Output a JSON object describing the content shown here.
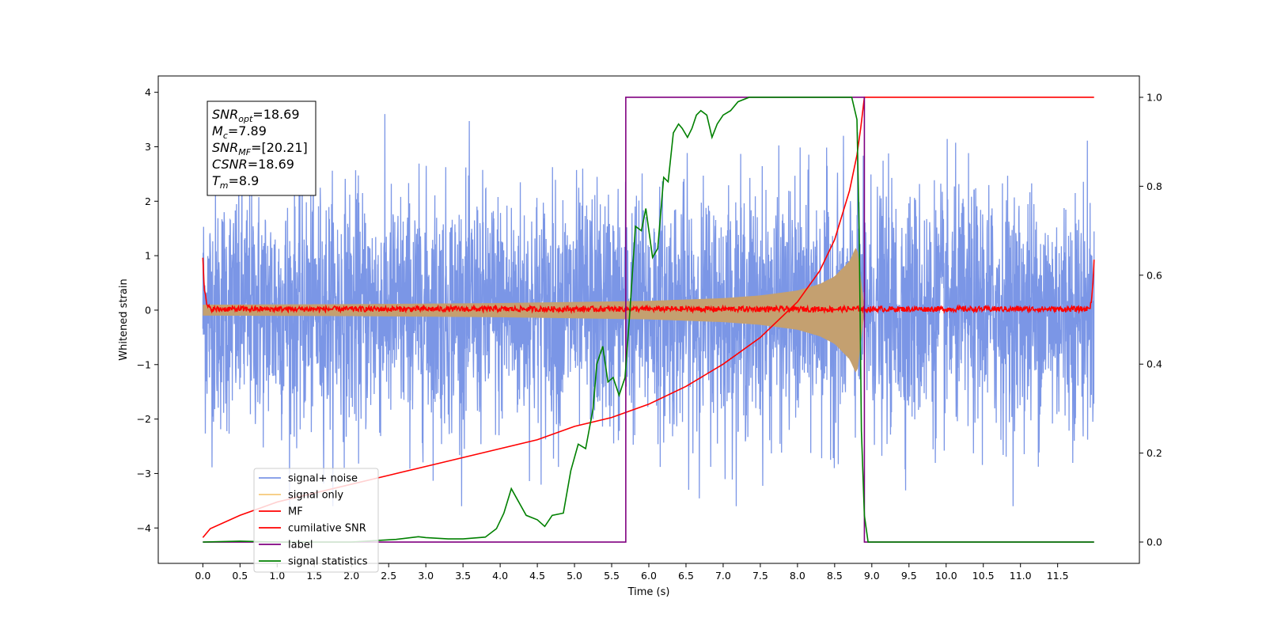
{
  "chart_data": {
    "type": "line",
    "xlabel": "Time (s)",
    "ylabel": "Whitened strain",
    "xlim": [
      -0.6,
      12.6
    ],
    "ylim": [
      -4.65,
      4.3
    ],
    "y2lim": [
      -0.048,
      1.048
    ],
    "xticks": [
      "0.0",
      "0.5",
      "1.0",
      "1.5",
      "2.0",
      "2.5",
      "3.0",
      "3.5",
      "4.0",
      "4.5",
      "5.0",
      "5.5",
      "6.0",
      "6.5",
      "7.0",
      "7.5",
      "8.0",
      "8.5",
      "9.0",
      "9.5",
      "10.0",
      "10.5",
      "11.0",
      "11.5"
    ],
    "yticks": [
      "−4",
      "−3",
      "−2",
      "−1",
      "0",
      "1",
      "2",
      "3",
      "4"
    ],
    "y2ticks": [
      "0.0",
      "0.2",
      "0.4",
      "0.6",
      "0.8",
      "1.0"
    ],
    "annotation": {
      "lines": [
        {
          "base": "SNR",
          "sub": "opt",
          "rest": "=18.69"
        },
        {
          "base": "M",
          "sub": "c",
          "rest": "=7.89"
        },
        {
          "base": "SNR",
          "sub": "MF",
          "rest": "=[20.21]"
        },
        {
          "base": "CSNR",
          "sub": "",
          "rest": "=18.69"
        },
        {
          "base": "T",
          "sub": "m",
          "rest": "=8.9"
        }
      ]
    },
    "legend": {
      "placement": "lower-left",
      "entries": [
        "signal+ noise",
        "signal only",
        "MF",
        "cumilative SNR",
        "label",
        "signal statistics"
      ]
    },
    "colors": {
      "noise": "#7b96e6",
      "signal": "#c4a070",
      "legend_signal": "#f6c97a",
      "mf": "#ff0000",
      "csnr": "#ff0000",
      "label": "#800080",
      "stats": "#008000"
    },
    "series": [
      {
        "name": "signal+ noise",
        "axis": "left",
        "t_range": [
          0.0,
          11.99
        ],
        "amplitude_range": [
          -3.6,
          3.6
        ],
        "peak_values": [
          3.55,
          3.4,
          3.45,
          -3.3,
          -3.6,
          3.2,
          -3.1
        ]
      },
      {
        "name": "signal only",
        "axis": "left",
        "t_range": [
          0.0,
          8.9
        ],
        "envelope_t": [
          0.0,
          2.0,
          4.0,
          5.0,
          6.0,
          7.0,
          7.5,
          8.0,
          8.3,
          8.5,
          8.7,
          8.8,
          8.9
        ],
        "envelope_amp": [
          0.1,
          0.11,
          0.13,
          0.15,
          0.17,
          0.22,
          0.27,
          0.36,
          0.48,
          0.62,
          0.9,
          1.2,
          0.05
        ]
      },
      {
        "name": "MF",
        "axis": "left",
        "t": [
          0.0,
          0.02,
          0.05,
          0.1,
          11.9,
          11.95,
          11.97,
          11.99
        ],
        "values": [
          1.0,
          0.4,
          0.1,
          0.02,
          0.02,
          0.1,
          0.4,
          0.9
        ],
        "noise_amplitude": 0.05
      },
      {
        "name": "cumilative SNR",
        "axis": "right",
        "t": [
          0.0,
          0.1,
          0.5,
          1.0,
          1.5,
          2.0,
          2.5,
          3.0,
          3.5,
          4.0,
          4.5,
          5.0,
          5.5,
          6.0,
          6.5,
          7.0,
          7.5,
          8.0,
          8.3,
          8.5,
          8.7,
          8.8,
          8.85,
          8.9,
          11.99
        ],
        "values": [
          0.01,
          0.03,
          0.06,
          0.09,
          0.11,
          0.13,
          0.15,
          0.17,
          0.19,
          0.21,
          0.23,
          0.26,
          0.28,
          0.31,
          0.35,
          0.4,
          0.46,
          0.54,
          0.61,
          0.68,
          0.79,
          0.87,
          0.93,
          1.0,
          1.0
        ]
      },
      {
        "name": "label",
        "axis": "right",
        "t": [
          0.0,
          5.69,
          5.69,
          8.9,
          8.9,
          11.99
        ],
        "values": [
          0.0,
          0.0,
          1.0,
          1.0,
          0.0,
          0.0
        ]
      },
      {
        "name": "signal statistics",
        "axis": "right",
        "t": [
          0.0,
          0.5,
          1.0,
          1.5,
          2.0,
          2.3,
          2.6,
          2.9,
          3.0,
          3.3,
          3.5,
          3.8,
          3.95,
          4.05,
          4.15,
          4.25,
          4.35,
          4.5,
          4.6,
          4.7,
          4.85,
          4.95,
          5.05,
          5.15,
          5.25,
          5.3,
          5.38,
          5.45,
          5.52,
          5.6,
          5.68,
          5.75,
          5.82,
          5.9,
          5.96,
          6.05,
          6.12,
          6.2,
          6.26,
          6.33,
          6.4,
          6.45,
          6.52,
          6.58,
          6.64,
          6.7,
          6.78,
          6.85,
          6.92,
          7.0,
          7.1,
          7.2,
          7.35,
          7.5,
          7.7,
          8.0,
          8.3,
          8.6,
          8.73,
          8.8,
          8.83,
          8.86,
          8.9,
          8.95,
          11.99
        ],
        "values": [
          0.0,
          0.002,
          0.0,
          0.0,
          0.0,
          0.003,
          0.006,
          0.012,
          0.01,
          0.007,
          0.007,
          0.011,
          0.03,
          0.065,
          0.12,
          0.09,
          0.06,
          0.05,
          0.035,
          0.06,
          0.065,
          0.16,
          0.22,
          0.21,
          0.3,
          0.4,
          0.44,
          0.36,
          0.37,
          0.33,
          0.37,
          0.53,
          0.71,
          0.7,
          0.75,
          0.64,
          0.66,
          0.82,
          0.81,
          0.92,
          0.94,
          0.93,
          0.91,
          0.93,
          0.96,
          0.97,
          0.96,
          0.91,
          0.94,
          0.96,
          0.97,
          0.99,
          1.0,
          1.0,
          1.0,
          1.0,
          1.0,
          1.0,
          1.0,
          0.95,
          0.7,
          0.25,
          0.06,
          0.0,
          0.0
        ]
      }
    ]
  }
}
